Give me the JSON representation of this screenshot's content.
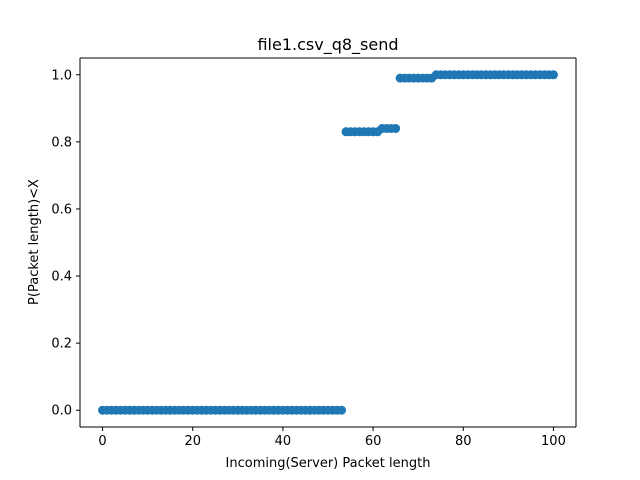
{
  "chart_data": {
    "type": "scatter",
    "title": "file1.csv_q8_send",
    "xlabel": "Incoming(Server) Packet length",
    "ylabel": "P(Packet length)<X",
    "xlim": [
      -5,
      105
    ],
    "ylim": [
      -0.05,
      1.05
    ],
    "xticks": [
      0,
      20,
      40,
      60,
      80,
      100
    ],
    "yticks": [
      0.0,
      0.2,
      0.4,
      0.6,
      0.8,
      1.0
    ],
    "xtick_labels": [
      "0",
      "20",
      "40",
      "60",
      "80",
      "100"
    ],
    "ytick_labels": [
      "0.0",
      "0.2",
      "0.4",
      "0.6",
      "0.8",
      "1.0"
    ],
    "grid": false,
    "marker_color": "#1f77b4",
    "x": [
      0,
      1,
      2,
      3,
      4,
      5,
      6,
      7,
      8,
      9,
      10,
      11,
      12,
      13,
      14,
      15,
      16,
      17,
      18,
      19,
      20,
      21,
      22,
      23,
      24,
      25,
      26,
      27,
      28,
      29,
      30,
      31,
      32,
      33,
      34,
      35,
      36,
      37,
      38,
      39,
      40,
      41,
      42,
      43,
      44,
      45,
      46,
      47,
      48,
      49,
      50,
      51,
      52,
      53,
      54,
      55,
      56,
      57,
      58,
      59,
      60,
      61,
      62,
      63,
      64,
      65,
      66,
      67,
      68,
      69,
      70,
      71,
      72,
      73,
      74,
      75,
      76,
      77,
      78,
      79,
      80,
      81,
      82,
      83,
      84,
      85,
      86,
      87,
      88,
      89,
      90,
      91,
      92,
      93,
      94,
      95,
      96,
      97,
      98,
      99,
      100
    ],
    "y": [
      0,
      0,
      0,
      0,
      0,
      0,
      0,
      0,
      0,
      0,
      0,
      0,
      0,
      0,
      0,
      0,
      0,
      0,
      0,
      0,
      0,
      0,
      0,
      0,
      0,
      0,
      0,
      0,
      0,
      0,
      0,
      0,
      0,
      0,
      0,
      0,
      0,
      0,
      0,
      0,
      0,
      0,
      0,
      0,
      0,
      0,
      0,
      0,
      0,
      0,
      0,
      0,
      0,
      0,
      0.83,
      0.83,
      0.83,
      0.83,
      0.83,
      0.83,
      0.83,
      0.83,
      0.84,
      0.84,
      0.84,
      0.84,
      0.99,
      0.99,
      0.99,
      0.99,
      0.99,
      0.99,
      0.99,
      0.99,
      1.0,
      1.0,
      1.0,
      1.0,
      1.0,
      1.0,
      1.0,
      1.0,
      1.0,
      1.0,
      1.0,
      1.0,
      1.0,
      1.0,
      1.0,
      1.0,
      1.0,
      1.0,
      1.0,
      1.0,
      1.0,
      1.0,
      1.0,
      1.0,
      1.0,
      1.0,
      1.0
    ]
  }
}
